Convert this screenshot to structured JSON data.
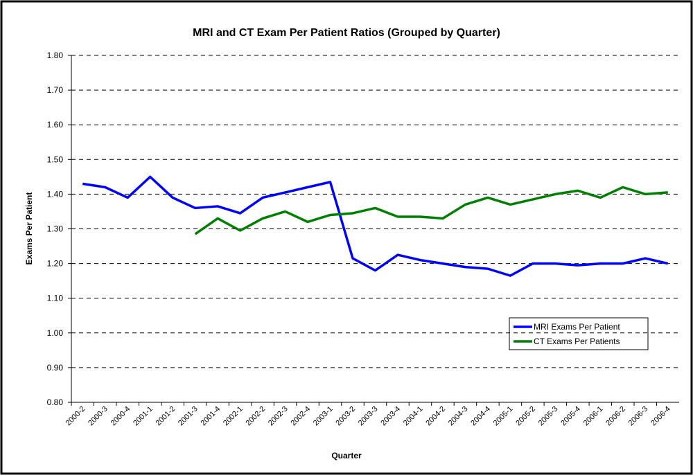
{
  "chart_data": {
    "type": "line",
    "title": "MRI and CT Exam Per Patient Ratios (Grouped by Quarter)",
    "x_label": "Quarter",
    "y_label": "Exams Per Patient",
    "categories": [
      "2000-2",
      "2000-3",
      "2000-4",
      "2001-1",
      "2001-2",
      "2001-3",
      "2001-4",
      "2002-1",
      "2002-2",
      "2002-3",
      "2002-4",
      "2003-1",
      "2003-2",
      "2003-3",
      "2003-4",
      "2004-1",
      "2004-2",
      "2004-3",
      "2004-4",
      "2005-1",
      "2005-2",
      "2005-3",
      "2005-4",
      "2006-1",
      "2006-2",
      "2006-3",
      "2006-4"
    ],
    "series": [
      {
        "name": "MRI Exams Per Patient",
        "color": "#0000ff",
        "values": [
          1.43,
          1.42,
          1.39,
          1.45,
          1.39,
          1.36,
          1.365,
          1.345,
          1.39,
          1.405,
          1.42,
          1.435,
          1.215,
          1.18,
          1.225,
          1.21,
          1.2,
          1.19,
          1.185,
          1.165,
          1.2,
          1.2,
          1.195,
          1.2,
          1.2,
          1.215,
          1.2
        ]
      },
      {
        "name": "CT Exams Per Patients",
        "color": "#008000",
        "values": [
          null,
          null,
          null,
          null,
          null,
          1.285,
          1.33,
          1.295,
          1.33,
          1.35,
          1.32,
          1.34,
          1.345,
          1.36,
          1.335,
          1.335,
          1.33,
          1.37,
          1.39,
          1.37,
          1.385,
          1.4,
          1.41,
          1.39,
          1.42,
          1.4,
          1.405
        ]
      }
    ],
    "ylim": [
      0.8,
      1.8
    ],
    "yticks": [
      {
        "value": 0.8,
        "label": "0.80"
      },
      {
        "value": 0.9,
        "label": "0.90"
      },
      {
        "value": 1.0,
        "label": "1.00"
      },
      {
        "value": 1.1,
        "label": "1.10"
      },
      {
        "value": 1.2,
        "label": "1.20"
      },
      {
        "value": 1.3,
        "label": "1.30"
      },
      {
        "value": 1.4,
        "label": "1.40"
      },
      {
        "value": 1.5,
        "label": "1.50"
      },
      {
        "value": 1.6,
        "label": "1.60"
      },
      {
        "value": 1.7,
        "label": "1.70"
      },
      {
        "value": 1.8,
        "label": "1.80"
      }
    ],
    "grid": true
  }
}
